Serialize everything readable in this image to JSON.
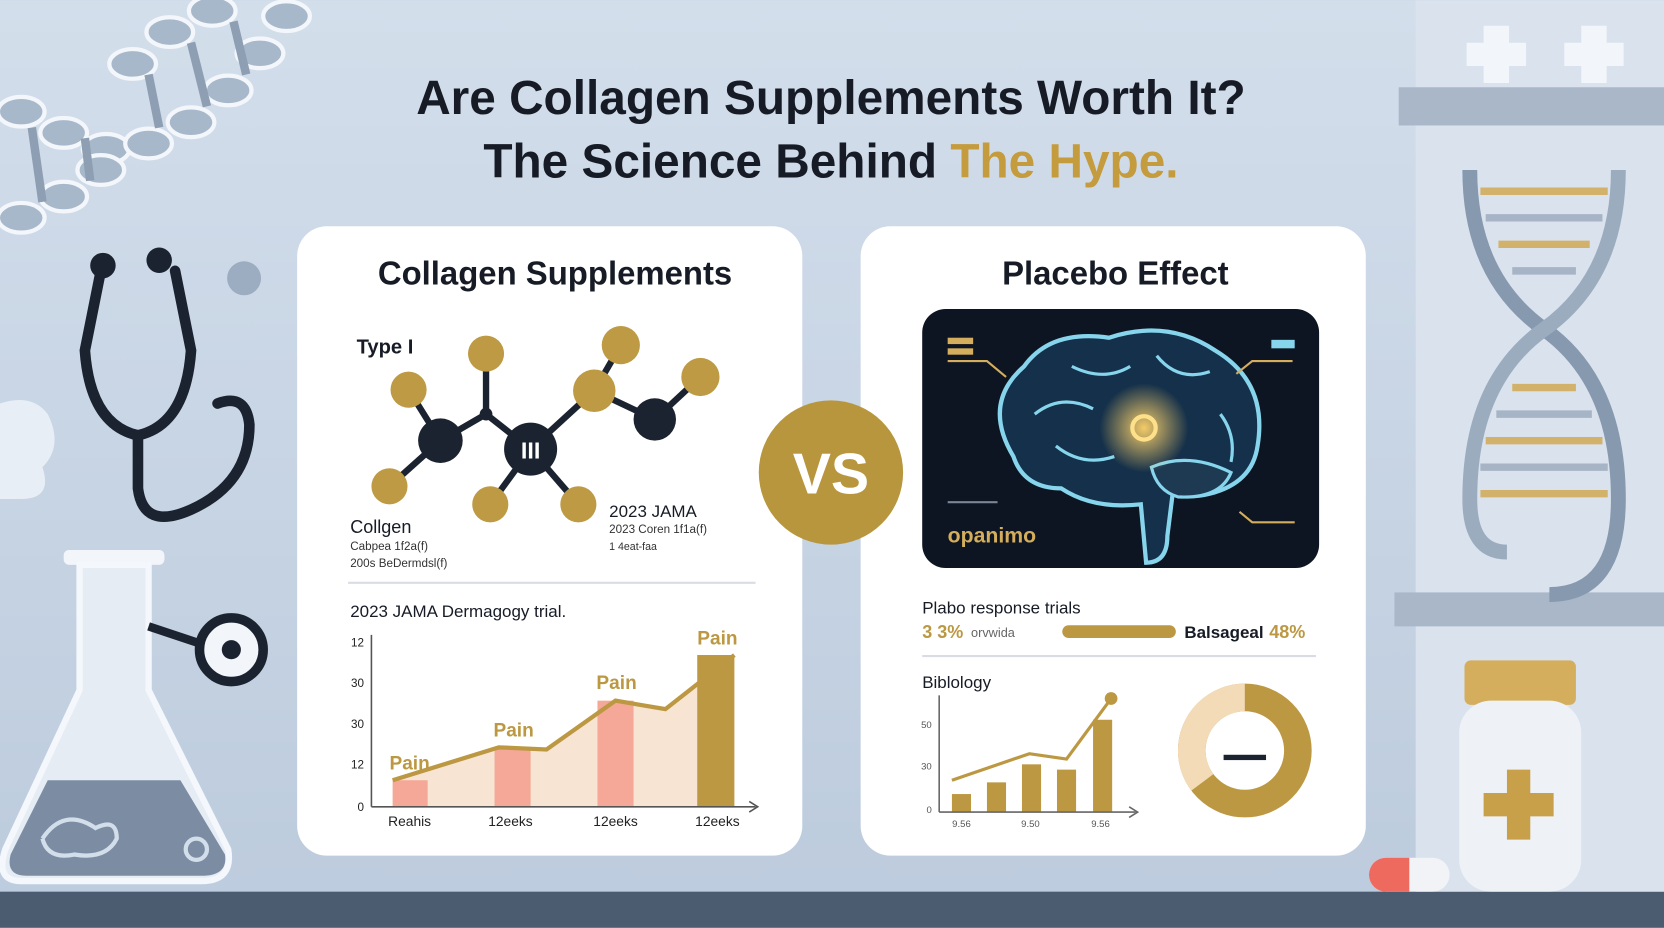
{
  "header": {
    "title_line1": "Are Collagen Supplements Worth It?",
    "title_line2": "The Science Behind",
    "title_highlight": "The Hype."
  },
  "vs": "VS",
  "left_card": {
    "title": "Collagen Supplements",
    "molecule": {
      "type_label": "Type I",
      "center_label": "III",
      "left_caption": [
        "Collgen",
        "Cabpea 1f2a(f)",
        "200s BeDermdsl(f)"
      ],
      "right_caption": [
        "2023 JAMA",
        "2023 Coren 1f1a(f)",
        "1 4eat-faa"
      ]
    },
    "chart": {
      "caption": "2023 JAMA Dermagogy trial.",
      "y_labels": [
        "12",
        "30",
        "30",
        "12",
        "0"
      ],
      "x_labels": [
        "Reahis",
        "12eeks",
        "12eeks",
        "12eeks"
      ],
      "bar_labels": [
        "Pain",
        "Pain",
        "Pain",
        "Pain"
      ]
    }
  },
  "right_card": {
    "title": "Placebo Effect",
    "brain_label": "opanimo",
    "response": {
      "title": "Plabo response trials",
      "left_value": "3 3%",
      "left_text": "orvwida",
      "right_text": "Balsageal",
      "right_value": "48%"
    },
    "chart": {
      "title": "Biblology",
      "y_labels": [
        "50",
        "30",
        "0"
      ],
      "x_labels": [
        "9.56",
        "9.50",
        "9.56"
      ]
    }
  }
}
